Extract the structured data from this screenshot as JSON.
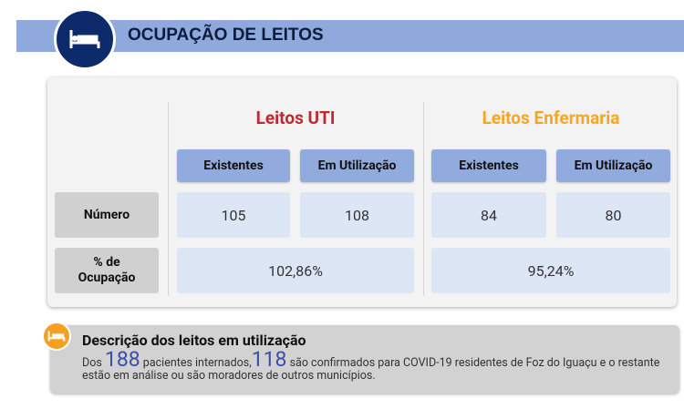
{
  "header": {
    "title": "OCUPAÇÃO DE LEITOS"
  },
  "table": {
    "row_labels": [
      "Número",
      "% de Ocupação"
    ],
    "groups": [
      {
        "title": "Leitos UTI",
        "color": "#c0282c",
        "columns": [
          "Existentes",
          "Em Utilização"
        ],
        "values": [
          105,
          108
        ],
        "occupancy": "102,86%"
      },
      {
        "title": "Leitos Enfermaria",
        "color": "#f5a623",
        "columns": [
          "Existentes",
          "Em Utilização"
        ],
        "values": [
          84,
          80
        ],
        "occupancy": "95,24%"
      }
    ]
  },
  "description": {
    "title": "Descrição dos leitos em utilização",
    "text": [
      "Dos",
      "188",
      "pacientes internados,",
      "118",
      "são confirmados para COVID-19 residentes de Foz do Iguaçu e o restante estão em análise ou são moradores de outros municípios."
    ]
  }
}
